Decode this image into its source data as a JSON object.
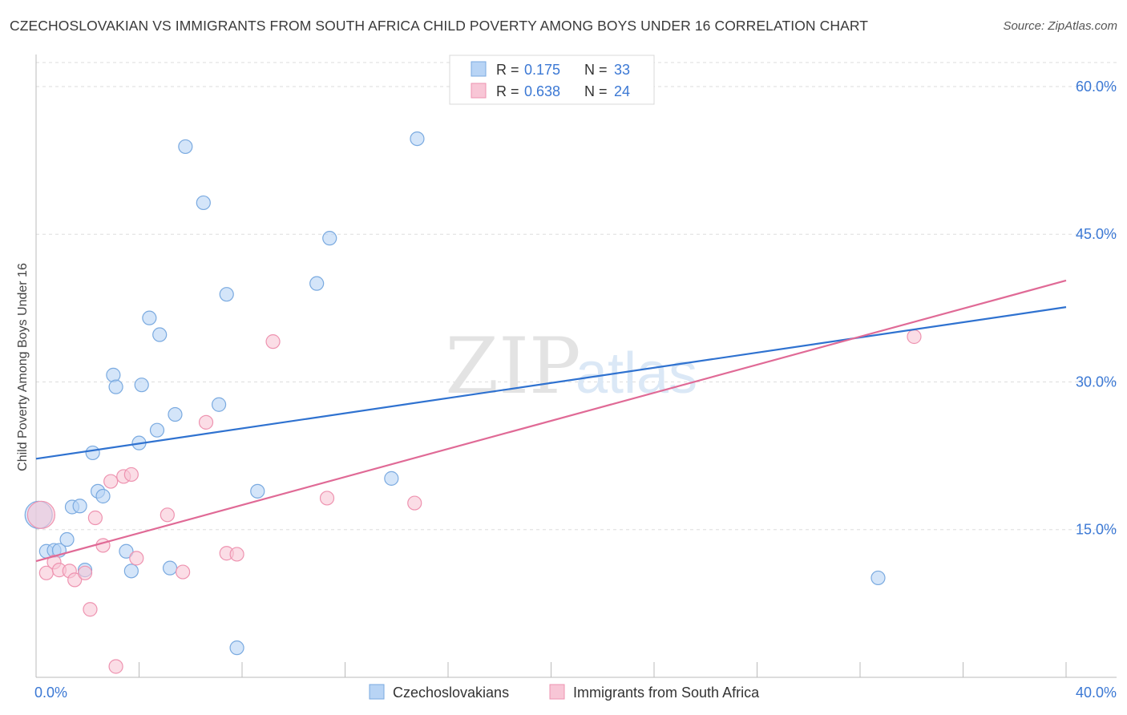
{
  "title": "CZECHOSLOVAKIAN VS IMMIGRANTS FROM SOUTH AFRICA CHILD POVERTY AMONG BOYS UNDER 16 CORRELATION CHART",
  "source": "Source: ZipAtlas.com",
  "watermark": {
    "zip": "ZIP",
    "atlas": "atlas"
  },
  "colors": {
    "blue_fill": "#b8d4f5",
    "blue_stroke": "#7aaae0",
    "blue_line": "#2f72d0",
    "pink_fill": "#f8c6d6",
    "pink_stroke": "#ee93b0",
    "pink_line": "#e06a96",
    "value_text": "#3b78d4",
    "grid": "#dddddd",
    "axis": "#bbbbbb"
  },
  "legend_top": [
    {
      "r_label": "R =",
      "r_value": "0.175",
      "n_label": "N =",
      "n_value": "33",
      "series": "blue"
    },
    {
      "r_label": "R =",
      "r_value": "0.638",
      "n_label": "N =",
      "n_value": "24",
      "series": "pink"
    }
  ],
  "chart_data": {
    "type": "scatter",
    "title": "CZECHOSLOVAKIAN VS IMMIGRANTS FROM SOUTH AFRICA CHILD POVERTY AMONG BOYS UNDER 16 CORRELATION CHART",
    "xlabel": "",
    "ylabel": "Child Poverty Among Boys Under 16",
    "xlim": [
      0,
      40
    ],
    "ylim": [
      0,
      63.5
    ],
    "x_tick_labels": [
      {
        "value": 0,
        "label": "0.0%"
      },
      {
        "value": 40,
        "label": "40.0%"
      }
    ],
    "y_tick_labels": [
      {
        "value": 15,
        "label": "15.0%"
      },
      {
        "value": 30,
        "label": "30.0%"
      },
      {
        "value": 45,
        "label": "45.0%"
      },
      {
        "value": 60,
        "label": "60.0%"
      }
    ],
    "x_minor_ticks": [
      0,
      4,
      8,
      12,
      16,
      20,
      24,
      28,
      32,
      36,
      40
    ],
    "y_gridlines": [
      15,
      30,
      45,
      60
    ],
    "legend_position": "bottom",
    "series": [
      {
        "name": "Czechoslovakians",
        "color": "blue",
        "trend": {
          "x": [
            0,
            40
          ],
          "y": [
            22.2,
            37.6
          ]
        },
        "points": [
          {
            "x": 0.1,
            "y": 16.5,
            "big": true
          },
          {
            "x": 0.4,
            "y": 12.8
          },
          {
            "x": 0.7,
            "y": 12.9
          },
          {
            "x": 0.9,
            "y": 12.9
          },
          {
            "x": 1.2,
            "y": 14.0
          },
          {
            "x": 1.4,
            "y": 17.3
          },
          {
            "x": 1.7,
            "y": 17.4
          },
          {
            "x": 1.9,
            "y": 10.9
          },
          {
            "x": 2.2,
            "y": 22.8
          },
          {
            "x": 2.4,
            "y": 18.9
          },
          {
            "x": 2.6,
            "y": 18.4
          },
          {
            "x": 3.0,
            "y": 30.7
          },
          {
            "x": 3.1,
            "y": 29.5
          },
          {
            "x": 3.5,
            "y": 12.8
          },
          {
            "x": 3.7,
            "y": 10.8
          },
          {
            "x": 4.0,
            "y": 23.8
          },
          {
            "x": 4.1,
            "y": 29.7
          },
          {
            "x": 4.4,
            "y": 36.5
          },
          {
            "x": 4.7,
            "y": 25.1
          },
          {
            "x": 4.8,
            "y": 34.8
          },
          {
            "x": 5.2,
            "y": 11.1
          },
          {
            "x": 5.4,
            "y": 26.7
          },
          {
            "x": 5.8,
            "y": 53.9
          },
          {
            "x": 6.5,
            "y": 48.2
          },
          {
            "x": 7.1,
            "y": 27.7
          },
          {
            "x": 7.4,
            "y": 38.9
          },
          {
            "x": 7.8,
            "y": 3.0
          },
          {
            "x": 8.6,
            "y": 18.9
          },
          {
            "x": 10.9,
            "y": 40.0
          },
          {
            "x": 11.4,
            "y": 44.6
          },
          {
            "x": 13.8,
            "y": 20.2
          },
          {
            "x": 14.8,
            "y": 54.7
          },
          {
            "x": 32.7,
            "y": 10.1
          }
        ]
      },
      {
        "name": "Immigrants from South Africa",
        "color": "pink",
        "trend": {
          "x": [
            0,
            40
          ],
          "y": [
            11.8,
            40.3
          ]
        },
        "points": [
          {
            "x": 0.2,
            "y": 16.5,
            "big": true
          },
          {
            "x": 0.4,
            "y": 10.6
          },
          {
            "x": 0.7,
            "y": 11.7
          },
          {
            "x": 0.9,
            "y": 10.9
          },
          {
            "x": 1.3,
            "y": 10.8
          },
          {
            "x": 1.5,
            "y": 9.9
          },
          {
            "x": 1.9,
            "y": 10.6
          },
          {
            "x": 2.1,
            "y": 6.9
          },
          {
            "x": 2.3,
            "y": 16.2
          },
          {
            "x": 2.6,
            "y": 13.4
          },
          {
            "x": 2.9,
            "y": 19.9
          },
          {
            "x": 3.1,
            "y": 1.1
          },
          {
            "x": 3.4,
            "y": 20.4
          },
          {
            "x": 3.7,
            "y": 20.6
          },
          {
            "x": 3.9,
            "y": 12.1
          },
          {
            "x": 5.1,
            "y": 16.5
          },
          {
            "x": 5.7,
            "y": 10.7
          },
          {
            "x": 6.6,
            "y": 25.9
          },
          {
            "x": 7.4,
            "y": 12.6
          },
          {
            "x": 7.8,
            "y": 12.5
          },
          {
            "x": 9.2,
            "y": 34.1
          },
          {
            "x": 11.3,
            "y": 18.2
          },
          {
            "x": 14.7,
            "y": 17.7
          },
          {
            "x": 34.1,
            "y": 34.6
          }
        ]
      }
    ]
  }
}
